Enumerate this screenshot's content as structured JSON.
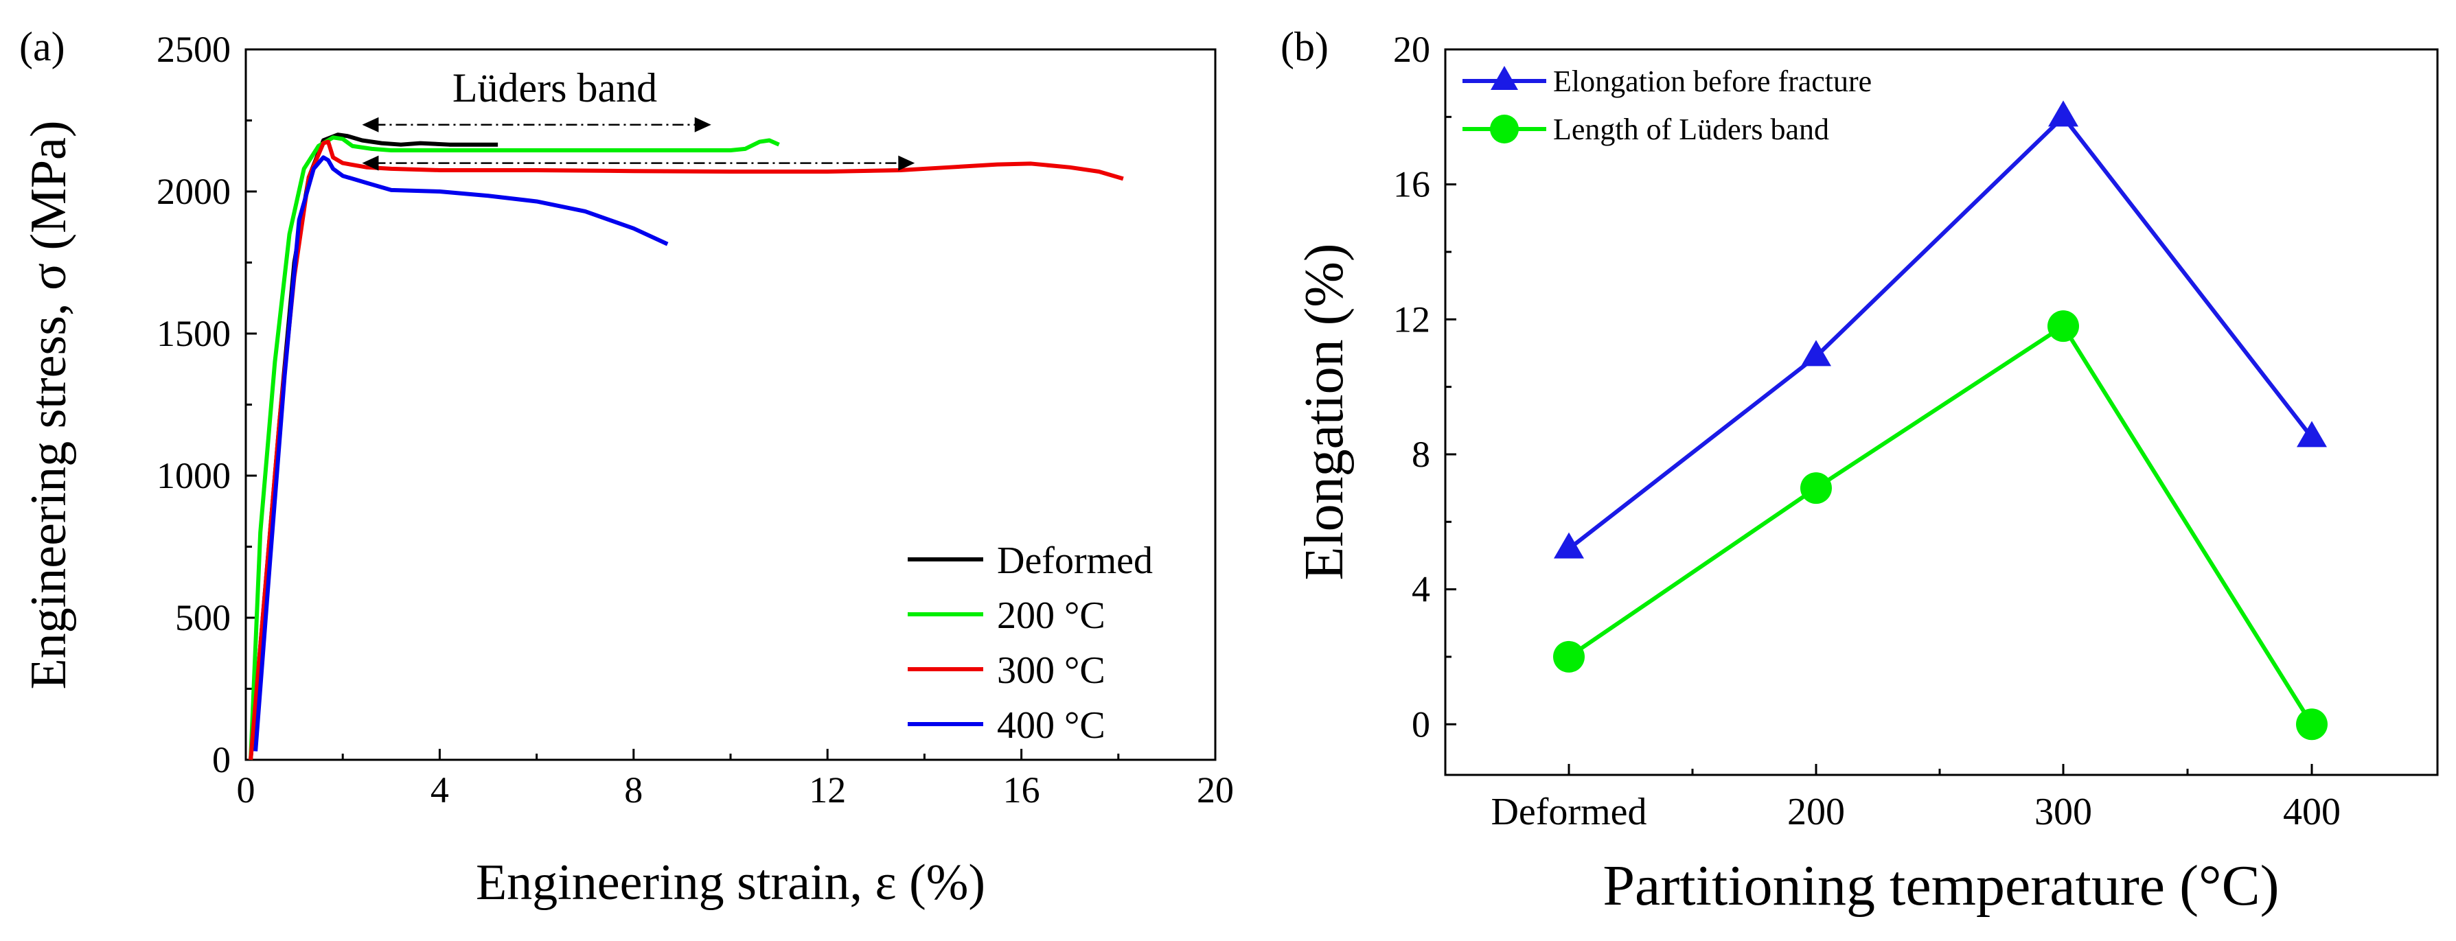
{
  "chart_data": [
    {
      "panel_label": "(a)",
      "type": "line",
      "xlabel": "Engineering strain, ε (%)",
      "ylabel": "Engineering stress, σ (MPa)",
      "xlim": [
        0,
        20
      ],
      "ylim": [
        0,
        2500
      ],
      "xticks": [
        0,
        4,
        8,
        12,
        16,
        20
      ],
      "yticks": [
        0,
        500,
        1000,
        1500,
        2000,
        2500
      ],
      "annotation": "Lüders band",
      "arrows": [
        {
          "x_start": 2.4,
          "x_end": 9.6,
          "y": 2235
        },
        {
          "x_start": 2.4,
          "x_end": 13.8,
          "y": 2100
        }
      ],
      "legend_position": "bottom-right",
      "series": [
        {
          "name": "Deformed",
          "color": "#000000",
          "x": [
            0.1,
            0.4,
            0.7,
            1.0,
            1.3,
            1.6,
            1.9,
            2.1,
            2.4,
            2.8,
            3.2,
            3.6,
            4.2,
            4.8,
            5.2
          ],
          "y": [
            0,
            600,
            1200,
            1750,
            2050,
            2180,
            2200,
            2195,
            2180,
            2170,
            2165,
            2170,
            2165,
            2165,
            2165
          ]
        },
        {
          "name": "200 °C",
          "color": "#00ee00",
          "x": [
            0.1,
            0.3,
            0.6,
            0.9,
            1.2,
            1.5,
            1.8,
            2.0,
            2.2,
            2.6,
            3.0,
            4.0,
            6.0,
            8.0,
            10.0,
            10.3,
            10.6,
            10.8,
            11.0
          ],
          "y": [
            0,
            800,
            1400,
            1850,
            2080,
            2160,
            2190,
            2185,
            2160,
            2150,
            2145,
            2145,
            2145,
            2145,
            2145,
            2150,
            2175,
            2180,
            2165
          ]
        },
        {
          "name": "300 °C",
          "color": "#ee0000",
          "x": [
            0.1,
            0.4,
            0.7,
            1.0,
            1.3,
            1.6,
            1.7,
            1.8,
            2.0,
            2.5,
            3.0,
            4.0,
            6.0,
            8.0,
            10.0,
            12.0,
            13.5,
            14.5,
            15.5,
            16.2,
            17.0,
            17.6,
            18.1
          ],
          "y": [
            0,
            600,
            1200,
            1700,
            2050,
            2170,
            2175,
            2120,
            2100,
            2085,
            2080,
            2075,
            2075,
            2072,
            2070,
            2070,
            2075,
            2085,
            2095,
            2098,
            2085,
            2070,
            2045
          ]
        },
        {
          "name": "400 °C",
          "color": "#0000ee",
          "x": [
            0.2,
            0.5,
            0.8,
            1.1,
            1.4,
            1.6,
            1.7,
            1.8,
            2.0,
            2.5,
            3.0,
            4.0,
            5.0,
            6.0,
            7.0,
            8.0,
            8.7
          ],
          "y": [
            30,
            700,
            1350,
            1900,
            2080,
            2120,
            2110,
            2080,
            2055,
            2030,
            2005,
            2000,
            1985,
            1965,
            1930,
            1870,
            1815
          ]
        }
      ]
    },
    {
      "panel_label": "(b)",
      "type": "line",
      "xlabel": "Partitioning temperature (°C)",
      "ylabel": "Elongation (%)",
      "categories": [
        "Deformed",
        "200",
        "300",
        "400"
      ],
      "ylim": [
        -1.5,
        20
      ],
      "yticks": [
        0,
        4,
        8,
        12,
        16,
        20
      ],
      "legend_position": "top-left",
      "series": [
        {
          "name": "Elongation before fracture",
          "color": "#1a1ae6",
          "marker": "triangle",
          "values": [
            5.2,
            10.9,
            18.0,
            8.5
          ]
        },
        {
          "name": "Length of Lüders band",
          "color": "#00ee00",
          "marker": "circle",
          "values": [
            2.0,
            7.0,
            11.8,
            0.0
          ]
        }
      ]
    }
  ]
}
